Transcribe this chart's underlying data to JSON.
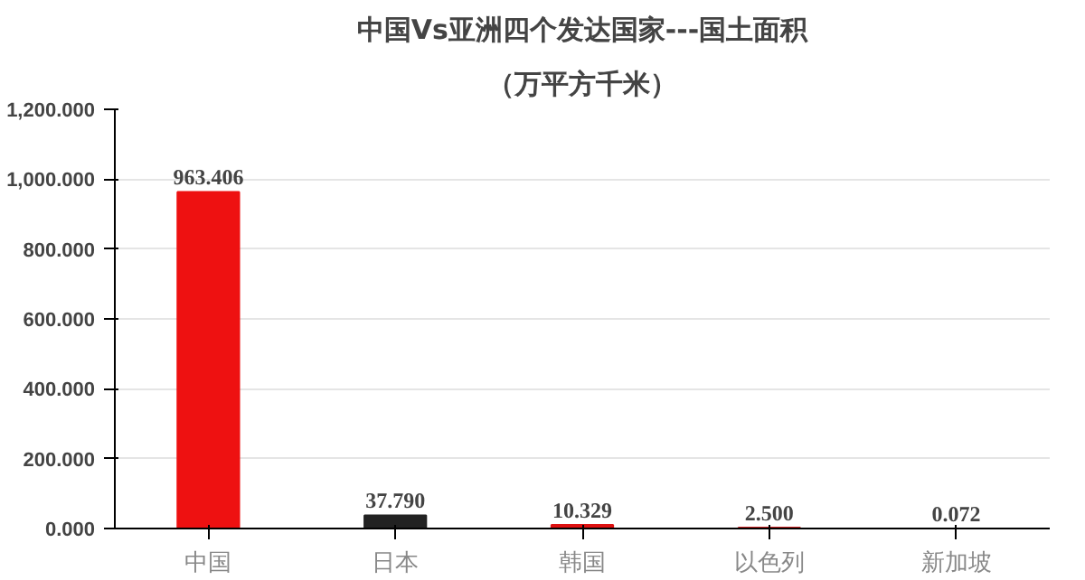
{
  "chart_data": {
    "type": "bar",
    "title": "中国Vs亚洲四个发达国家---国土面积",
    "subtitle": "（万平方千米）",
    "categories": [
      "中国",
      "日本",
      "韩国",
      "以色列",
      "新加坡"
    ],
    "values": [
      963.406,
      37.79,
      10.329,
      2.5,
      0.072
    ],
    "colors": [
      "#ee1111",
      "#222222",
      "#dd1111",
      "#cc2222",
      "#cc2222"
    ],
    "value_labels": [
      "963.406",
      "37.790",
      "10.329",
      "2.500",
      "0.072"
    ],
    "ylim": [
      0,
      1200
    ],
    "yticks": [
      {
        "value": 0,
        "label": "0.000"
      },
      {
        "value": 200,
        "label": "200.000"
      },
      {
        "value": 400,
        "label": "400.000"
      },
      {
        "value": 600,
        "label": "600.000"
      },
      {
        "value": 800,
        "label": "800.000"
      },
      {
        "value": 1000,
        "label": "1,000.000"
      },
      {
        "value": 1200,
        "label": "1,200.000"
      }
    ],
    "grid": "y"
  }
}
